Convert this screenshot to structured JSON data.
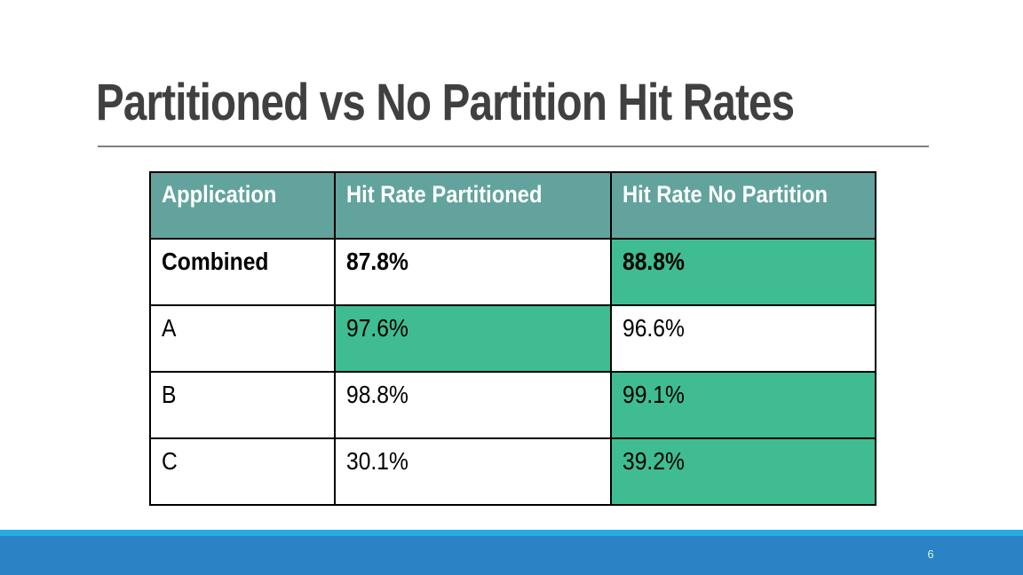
{
  "slide": {
    "title": "Partitioned vs No Partition Hit Rates",
    "page_number": "6"
  },
  "table": {
    "headers": {
      "application": "Application",
      "partitioned": "Hit Rate Partitioned",
      "no_partition": "Hit Rate No Partition"
    },
    "rows": [
      {
        "application": "Combined",
        "partitioned": "87.8%",
        "no_partition": "88.8%",
        "bold": true,
        "highlight": "no_partition"
      },
      {
        "application": "A",
        "partitioned": "97.6%",
        "no_partition": "96.6%",
        "bold": false,
        "highlight": "partitioned"
      },
      {
        "application": "B",
        "partitioned": "98.8%",
        "no_partition": "99.1%",
        "bold": false,
        "highlight": "no_partition"
      },
      {
        "application": "C",
        "partitioned": "30.1%",
        "no_partition": "39.2%",
        "bold": false,
        "highlight": "no_partition"
      }
    ]
  },
  "chart_data": {
    "type": "table",
    "title": "Partitioned vs No Partition Hit Rates",
    "columns": [
      "Application",
      "Hit Rate Partitioned",
      "Hit Rate No Partition"
    ],
    "rows": [
      [
        "Combined",
        "87.8%",
        "88.8%"
      ],
      [
        "A",
        "97.6%",
        "96.6%"
      ],
      [
        "B",
        "98.8%",
        "99.1%"
      ],
      [
        "C",
        "30.1%",
        "39.2%"
      ]
    ]
  },
  "colors": {
    "header_bg": "#62a39d",
    "highlight_green": "#3fbc92",
    "title_text": "#404040",
    "underline": "#808080",
    "table_border": "#000000",
    "footer_light_blue": "#29abe2",
    "footer_dark_blue": "#2a83c5"
  }
}
